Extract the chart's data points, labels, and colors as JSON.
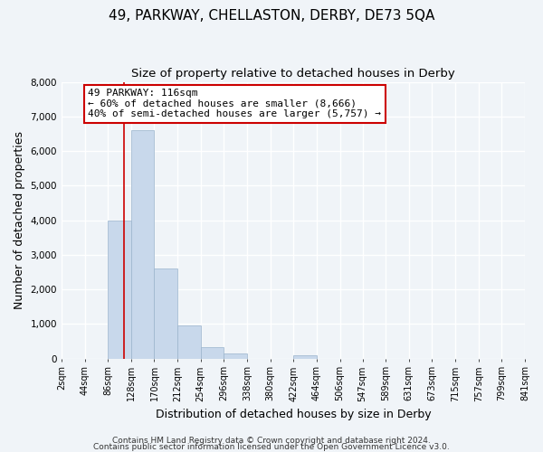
{
  "title": "49, PARKWAY, CHELLASTON, DERBY, DE73 5QA",
  "subtitle": "Size of property relative to detached houses in Derby",
  "xlabel": "Distribution of detached houses by size in Derby",
  "ylabel": "Number of detached properties",
  "bin_edges": [
    2,
    44,
    86,
    128,
    170,
    212,
    254,
    296,
    338,
    380,
    422,
    464,
    506,
    547,
    589,
    631,
    673,
    715,
    757,
    799,
    841
  ],
  "bar_heights": [
    0,
    0,
    4000,
    6600,
    2600,
    950,
    320,
    140,
    0,
    0,
    100,
    0,
    0,
    0,
    0,
    0,
    0,
    0,
    0,
    0
  ],
  "bar_color": "#c8d8eb",
  "bar_edgecolor": "#9ab4cc",
  "property_size": 116,
  "red_line_color": "#cc0000",
  "annotation_line1": "49 PARKWAY: 116sqm",
  "annotation_line2": "← 60% of detached houses are smaller (8,666)",
  "annotation_line3": "40% of semi-detached houses are larger (5,757) →",
  "annotation_box_color": "#ffffff",
  "annotation_box_edgecolor": "#cc0000",
  "ylim": [
    0,
    8000
  ],
  "xlim": [
    2,
    841
  ],
  "tick_labels": [
    "2sqm",
    "44sqm",
    "86sqm",
    "128sqm",
    "170sqm",
    "212sqm",
    "254sqm",
    "296sqm",
    "338sqm",
    "380sqm",
    "422sqm",
    "464sqm",
    "506sqm",
    "547sqm",
    "589sqm",
    "631sqm",
    "673sqm",
    "715sqm",
    "757sqm",
    "799sqm",
    "841sqm"
  ],
  "footer1": "Contains HM Land Registry data © Crown copyright and database right 2024.",
  "footer2": "Contains public sector information licensed under the Open Government Licence v3.0.",
  "background_color": "#f0f4f8",
  "grid_color": "#ffffff",
  "title_fontsize": 11,
  "subtitle_fontsize": 9.5,
  "axis_label_fontsize": 9,
  "tick_fontsize": 7,
  "annotation_fontsize": 8,
  "footer_fontsize": 6.5
}
